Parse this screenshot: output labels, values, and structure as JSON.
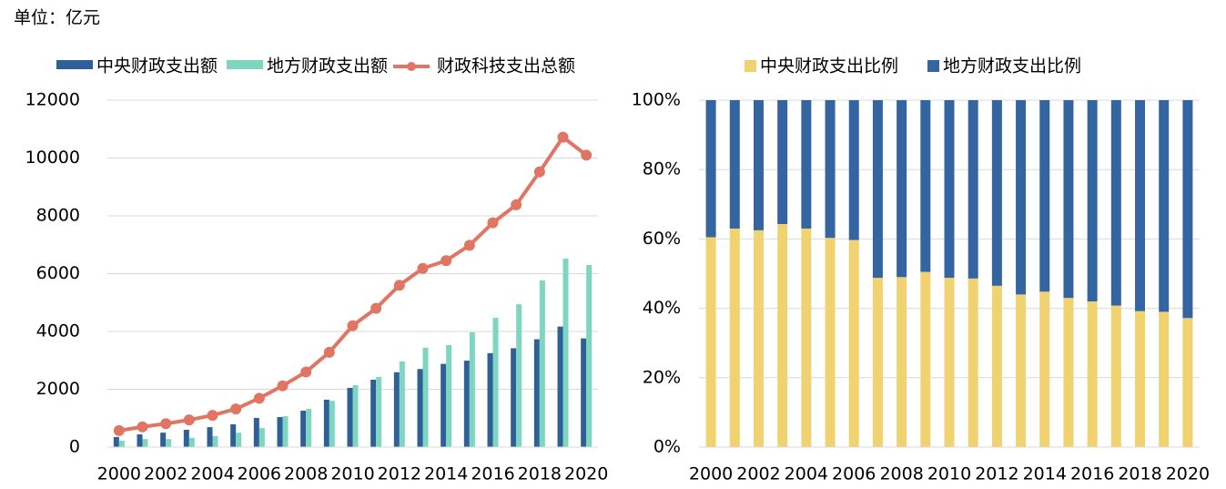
{
  "header": {
    "unit": "单位：亿元"
  },
  "chart_data": [
    {
      "type": "bar",
      "categories": [
        "2000",
        null,
        "2002",
        null,
        "2004",
        null,
        "2006",
        null,
        "2008",
        null,
        "2010",
        null,
        "2012",
        null,
        "2014",
        null,
        "2016",
        null,
        "2018",
        null,
        "2020"
      ],
      "series": [
        {
          "name": "中央财政支出额",
          "color": "#2e5f96",
          "type": "bar",
          "values": [
            350,
            440,
            500,
            600,
            690,
            790,
            1010,
            1040,
            1260,
            1640,
            2050,
            2330,
            2590,
            2700,
            2880,
            2990,
            3250,
            3420,
            3730,
            4170,
            3760
          ]
        },
        {
          "name": "地方财政支出额",
          "color": "#7fd6c0",
          "type": "bar",
          "values": [
            220,
            280,
            280,
            320,
            380,
            500,
            660,
            1070,
            1320,
            1600,
            2140,
            2430,
            2960,
            3440,
            3530,
            3970,
            4470,
            4940,
            5770,
            6520,
            6300
          ]
        },
        {
          "name": "财政科技支出总额",
          "color": "#e07563",
          "type": "line",
          "values": [
            570,
            700,
            810,
            940,
            1100,
            1320,
            1690,
            2120,
            2600,
            3280,
            4200,
            4800,
            5600,
            6180,
            6450,
            6980,
            7760,
            8380,
            9520,
            10720,
            10100
          ]
        }
      ],
      "ylim": [
        0,
        12000
      ],
      "yticks": [
        0,
        2000,
        4000,
        6000,
        8000,
        10000,
        12000
      ],
      "grid": true
    },
    {
      "type": "stacked_bar",
      "categories": [
        "2000",
        null,
        "2002",
        null,
        "2004",
        null,
        "2006",
        null,
        "2008",
        null,
        "2010",
        null,
        "2012",
        null,
        "2014",
        null,
        "2016",
        null,
        "2018",
        null,
        "2020"
      ],
      "series": [
        {
          "name": "中央财政支出比例",
          "color": "#f1d271",
          "values": [
            60.5,
            63,
            62.5,
            64.3,
            63,
            60.3,
            59.7,
            48.8,
            49,
            50.5,
            48.8,
            48.6,
            46.5,
            44,
            44.8,
            43,
            42,
            40.8,
            39.2,
            39,
            37.2
          ]
        },
        {
          "name": "地方财政支出比例",
          "color": "#3465a0",
          "values": [
            39.5,
            37,
            37.5,
            35.7,
            37,
            39.7,
            40.3,
            51.2,
            51,
            49.5,
            51.2,
            51.4,
            53.5,
            56,
            55.2,
            57,
            58,
            59.2,
            60.8,
            61,
            62.8
          ]
        }
      ],
      "ylim": [
        0,
        100
      ],
      "yticks": [
        {
          "value": 0,
          "label": "0%"
        },
        {
          "value": 20,
          "label": "20%"
        },
        {
          "value": 40,
          "label": "40%"
        },
        {
          "value": 60,
          "label": "60%"
        },
        {
          "value": 80,
          "label": "80%"
        },
        {
          "value": 100,
          "label": "100%"
        }
      ],
      "grid": true
    }
  ]
}
